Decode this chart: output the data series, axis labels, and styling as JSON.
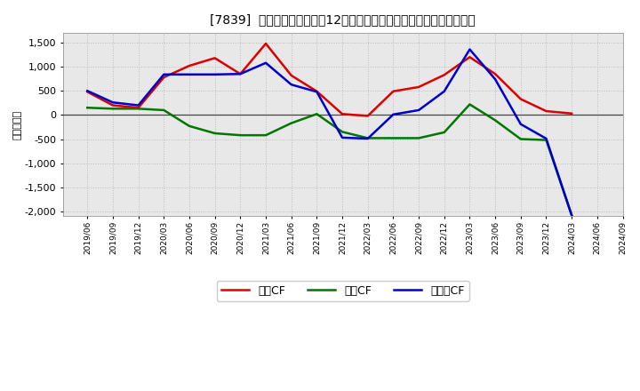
{
  "title": "[7839]  キャッシュフローの12か月移動合計の対前年同期増減額の推移",
  "ylabel": "（百万円）",
  "x_labels": [
    "2019/06",
    "2019/09",
    "2019/12",
    "2020/03",
    "2020/06",
    "2020/09",
    "2020/12",
    "2021/03",
    "2021/06",
    "2021/09",
    "2021/12",
    "2022/03",
    "2022/06",
    "2022/09",
    "2022/12",
    "2023/03",
    "2023/06",
    "2023/09",
    "2023/12",
    "2024/03",
    "2024/06",
    "2024/09"
  ],
  "operating_cf": [
    480,
    200,
    150,
    780,
    1020,
    1180,
    850,
    1480,
    820,
    490,
    20,
    -20,
    490,
    580,
    830,
    1200,
    850,
    330,
    80,
    30,
    null,
    null
  ],
  "investing_cf": [
    150,
    130,
    130,
    100,
    -230,
    -380,
    -420,
    -420,
    -170,
    20,
    -350,
    -480,
    -480,
    -480,
    -360,
    220,
    -110,
    -500,
    -520,
    -2080,
    null,
    null
  ],
  "free_cf": [
    500,
    260,
    200,
    840,
    840,
    840,
    850,
    1080,
    630,
    480,
    -470,
    -490,
    10,
    100,
    490,
    1360,
    740,
    -190,
    -490,
    -2080,
    null,
    null
  ],
  "operating_color": "#dd0000",
  "investing_color": "#007700",
  "free_color": "#0000cc",
  "ylim": [
    -2100,
    1700
  ],
  "yticks": [
    -2000,
    -1500,
    -1000,
    -500,
    0,
    500,
    1000,
    1500
  ],
  "background_color": "#ffffff",
  "plot_bg_color": "#e8e8e8",
  "grid_color": "#bbbbbb",
  "legend_labels": [
    "営業CF",
    "投資CF",
    "フリーCF"
  ]
}
